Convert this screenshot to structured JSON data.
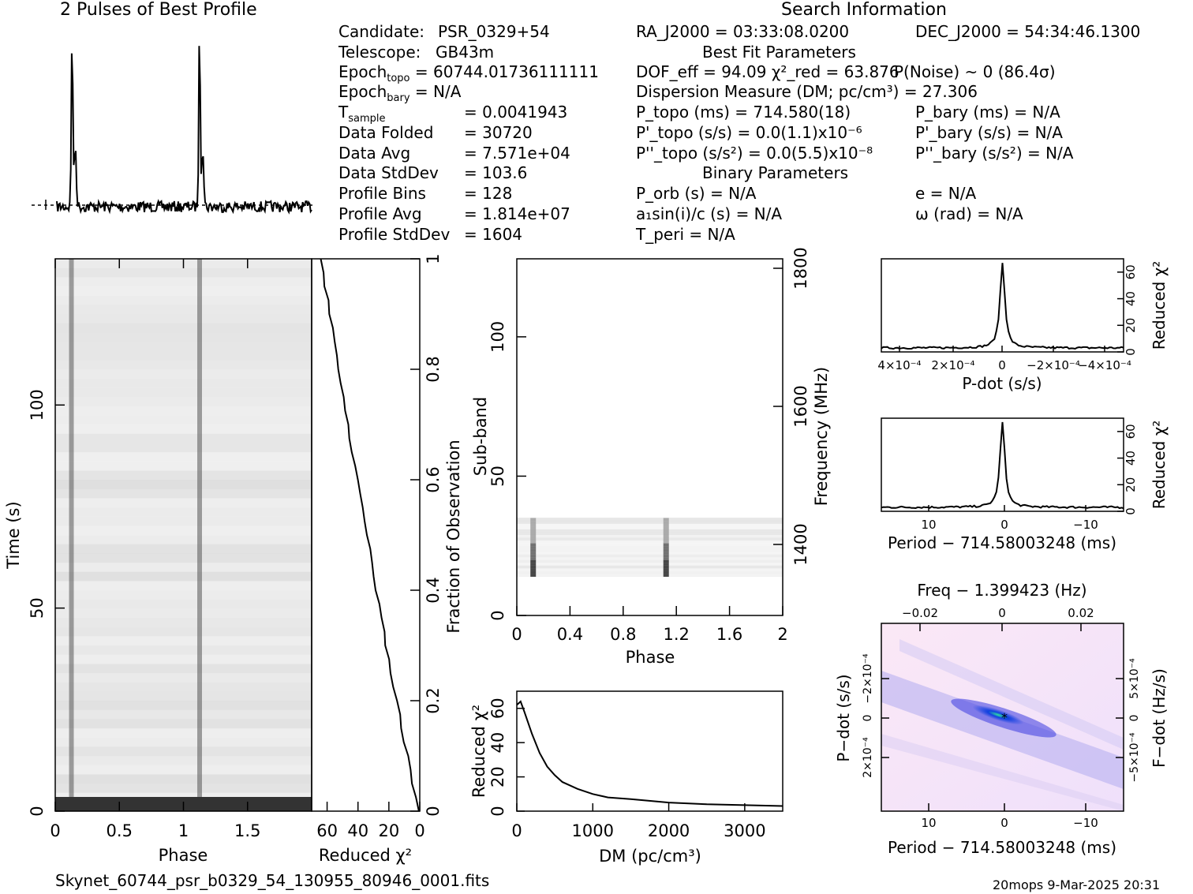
{
  "title_profile": "2 Pulses of Best Profile",
  "title_search": "Search Information",
  "info_left": [
    {
      "k": "Candidate:",
      "v": "PSR_0329+54"
    },
    {
      "k": "Telescope:",
      "v": "GB43m"
    },
    {
      "k": "Epoch_topo",
      "v": "= 60744.01736111111"
    },
    {
      "k": "Epoch_bary",
      "v": "= N/A"
    },
    {
      "k": "T_sample",
      "v": "=  0.0041943"
    },
    {
      "k": "Data Folded",
      "v": "=  30720"
    },
    {
      "k": "Data Avg",
      "v": "=  7.571e+04"
    },
    {
      "k": "Data StdDev",
      "v": "=  103.6"
    },
    {
      "k": "Profile Bins",
      "v": "=  128"
    },
    {
      "k": "Profile Avg",
      "v": "=  1.814e+07"
    },
    {
      "k": "Profile StdDev",
      "v": "=  1604"
    }
  ],
  "info_mid": [
    "RA_J2000 = 03:33:08.0200",
    "Best Fit Parameters",
    "DOF_eff = 94.09  χ²_red = 63.876",
    "Dispersion Measure (DM; pc/cm³) = 27.306",
    "P_topo (ms) =  714.580(18)",
    "P'_topo (s/s) = 0.0(1.1)x10⁻⁶",
    "P''_topo (s/s²) = 0.0(5.5)x10⁻⁸",
    "Binary Parameters",
    "P_orb (s) = N/A",
    "a₁sin(i)/c (s) = N/A",
    "T_peri = N/A"
  ],
  "info_right": [
    "DEC_J2000 = 54:34:46.1300",
    "P(Noise) ~ 0   (86.4σ)",
    "P_bary (ms) = N/A",
    "P'_bary (s/s) = N/A",
    "P''_bary (s/s²) = N/A",
    "e = N/A",
    "ω (rad) = N/A"
  ],
  "footer_file": "Skynet_60744_psr_b0329_54_130955_80946_0001.fits",
  "footer_stamp": "20mops   9-Mar-2025 20:31",
  "chart_data": [
    {
      "type": "line",
      "name": "profile",
      "title": "2 Pulses of Best Profile",
      "x_range": [
        0,
        2
      ],
      "peaks_phase": [
        0.12,
        1.12
      ]
    },
    {
      "type": "heatmap",
      "name": "time-phase",
      "xlabel": "Phase",
      "ylabel": "Time (s)",
      "xticks": [
        "0",
        "0.5",
        "1",
        "1.5"
      ],
      "yticks": [
        "0",
        "50",
        "100"
      ],
      "ylim": [
        0,
        136
      ]
    },
    {
      "type": "line",
      "name": "chi2-vs-time",
      "xlabel": "Reduced χ²",
      "xticks": [
        "60",
        "40",
        "20",
        "0"
      ],
      "y2label": "Fraction of Observation",
      "y2ticks": [
        "0",
        "0.2",
        "0.4",
        "0.6",
        "0.8",
        "1"
      ]
    },
    {
      "type": "heatmap",
      "name": "subband-phase",
      "xlabel": "Phase",
      "ylabel": "Sub-band",
      "y2label": "Frequency (MHz)",
      "xticks": [
        "0",
        "0.4",
        "0.8",
        "1.2",
        "1.6",
        "2"
      ],
      "yticks": [
        "0",
        "50",
        "100"
      ],
      "y2ticks": [
        "1400",
        "1600",
        "1800"
      ],
      "active_subbands": [
        14,
        35
      ]
    },
    {
      "type": "line",
      "name": "dm-chi2",
      "xlabel": "DM (pc/cm³)",
      "ylabel": "Reduced χ²",
      "xticks": [
        "0",
        "1000",
        "2000",
        "3000"
      ],
      "yticks": [
        "0",
        "20",
        "40",
        "60"
      ],
      "xlim": [
        0,
        3500
      ],
      "ylim": [
        0,
        70
      ],
      "x": [
        0,
        50,
        100,
        200,
        300,
        400,
        500,
        600,
        700,
        800,
        1000,
        1200,
        1500,
        2000,
        2500,
        3000,
        3500
      ],
      "y": [
        62,
        64,
        58,
        45,
        34,
        26,
        21,
        17,
        15,
        13,
        10,
        8,
        7,
        5,
        4,
        3.5,
        3
      ]
    },
    {
      "type": "line",
      "name": "pdot-chi2",
      "xlabel": "P-dot (s/s)",
      "ylabel": "Reduced χ²",
      "xticks": [
        "4×10⁻⁴",
        "2×10⁻⁴",
        "0",
        "−2×10⁻⁴",
        "−4×10⁻⁴"
      ],
      "yticks": [
        "0",
        "20",
        "40",
        "60"
      ],
      "peak": 64
    },
    {
      "type": "line",
      "name": "period-chi2",
      "xlabel": "Period − 714.58003248 (ms)",
      "ylabel": "Reduced χ²",
      "xticks": [
        "10",
        "0",
        "−10"
      ],
      "yticks": [
        "0",
        "20",
        "40",
        "60"
      ],
      "peak": 64
    },
    {
      "type": "heatmap",
      "name": "p-pdot",
      "xlabel": "Period − 714.58003248 (ms)",
      "ylabel": "P−dot (s/s)",
      "x2label": "Freq − 1.399423 (Hz)",
      "y2label": "F−dot (Hz/s)",
      "xticks": [
        "10",
        "0",
        "−10"
      ],
      "x2ticks": [
        "−0.02",
        "0",
        "0.02"
      ],
      "yticks": [
        "−2×10⁻⁴",
        "0",
        "2×10⁻⁴"
      ],
      "y2ticks": [
        "5×10⁻⁴",
        "0",
        "−5×10⁻⁴"
      ]
    }
  ]
}
